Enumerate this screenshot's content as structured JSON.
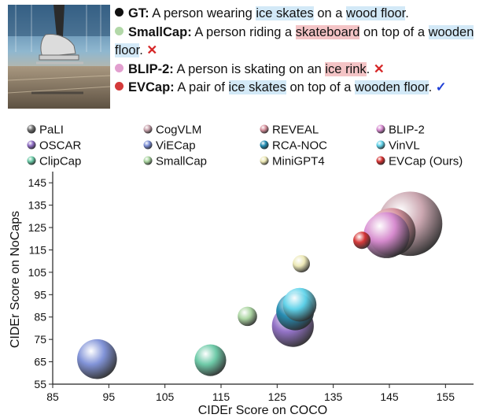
{
  "captions": [
    {
      "label": "GT:",
      "color": "#111111",
      "parts": [
        {
          "t": "A person wearing ",
          "hl": ""
        },
        {
          "t": "ice skates",
          "hl": "blue"
        },
        {
          "t": " on a ",
          "hl": ""
        },
        {
          "t": "wood floor",
          "hl": "blue"
        },
        {
          "t": ".",
          "hl": ""
        }
      ],
      "mark": ""
    },
    {
      "label": "SmallCap:",
      "color": "#b2d8a8",
      "parts": [
        {
          "t": "A person riding a ",
          "hl": ""
        },
        {
          "t": "skateboard",
          "hl": "red"
        },
        {
          "t": " on top of a ",
          "hl": ""
        },
        {
          "t": "wooden floor",
          "hl": "blue"
        },
        {
          "t": ".",
          "hl": ""
        }
      ],
      "mark": "✕"
    },
    {
      "label": "BLIP-2:",
      "color": "#e29fcf",
      "parts": [
        {
          "t": "A person is skating on an ",
          "hl": ""
        },
        {
          "t": "ice rink",
          "hl": "red"
        },
        {
          "t": ".",
          "hl": ""
        }
      ],
      "mark": "✕"
    },
    {
      "label": "EVCap:",
      "color": "#d43a3a",
      "parts": [
        {
          "t": "A pair of ",
          "hl": ""
        },
        {
          "t": "ice skates",
          "hl": "blue"
        },
        {
          "t": " on top of a ",
          "hl": ""
        },
        {
          "t": "wooden floor",
          "hl": "blue"
        },
        {
          "t": ".",
          "hl": ""
        }
      ],
      "mark": "✓"
    }
  ],
  "chart_data": {
    "type": "scatter",
    "xlabel": "CIDEr Score on COCO",
    "ylabel": "CIDEr Score on NoCaps",
    "xlim": [
      85,
      160
    ],
    "ylim": [
      55,
      150
    ],
    "xticks": [
      85,
      95,
      105,
      115,
      125,
      135,
      145,
      155
    ],
    "yticks": [
      55,
      65,
      75,
      85,
      95,
      105,
      115,
      125,
      135,
      145
    ],
    "grid": false,
    "legend_position": "top",
    "series": [
      {
        "name": "PaLI",
        "color": "#6e6e6e",
        "x": null,
        "y": null,
        "size": null
      },
      {
        "name": "CogVLM",
        "color": "#c9a3ad",
        "x": 148.7,
        "y": 126.7,
        "size": 3.2
      },
      {
        "name": "REVEAL",
        "color": "#d58e9a",
        "x": 145.4,
        "y": 123.0,
        "size": 2.4
      },
      {
        "name": "BLIP-2",
        "color": "#d68ad0",
        "x": 144.5,
        "y": 121.6,
        "size": 2.3
      },
      {
        "name": "OSCAR",
        "color": "#8e6cc4",
        "x": 127.8,
        "y": 81.0,
        "size": 2.1
      },
      {
        "name": "ViECap",
        "color": "#7b8ed6",
        "x": 92.9,
        "y": 66.2,
        "size": 2.0
      },
      {
        "name": "RCA-NOC",
        "color": "#1e8ab0",
        "x": 128.2,
        "y": 87.5,
        "size": 1.9
      },
      {
        "name": "VinVL",
        "color": "#5fd3ea",
        "x": 129.0,
        "y": 90.5,
        "size": 1.7
      },
      {
        "name": "ClipCap",
        "color": "#67c8a4",
        "x": 113.1,
        "y": 65.7,
        "size": 1.6
      },
      {
        "name": "SmallCap",
        "color": "#a8d49e",
        "x": 119.7,
        "y": 85.3,
        "size": 1.0
      },
      {
        "name": "MiniGPT4",
        "color": "#ece8b4",
        "x": 129.3,
        "y": 108.8,
        "size": 0.9
      },
      {
        "name": "EVCap (Ours)",
        "color": "#d42f2f",
        "x": 140.1,
        "y": 119.3,
        "size": 0.9
      }
    ]
  }
}
